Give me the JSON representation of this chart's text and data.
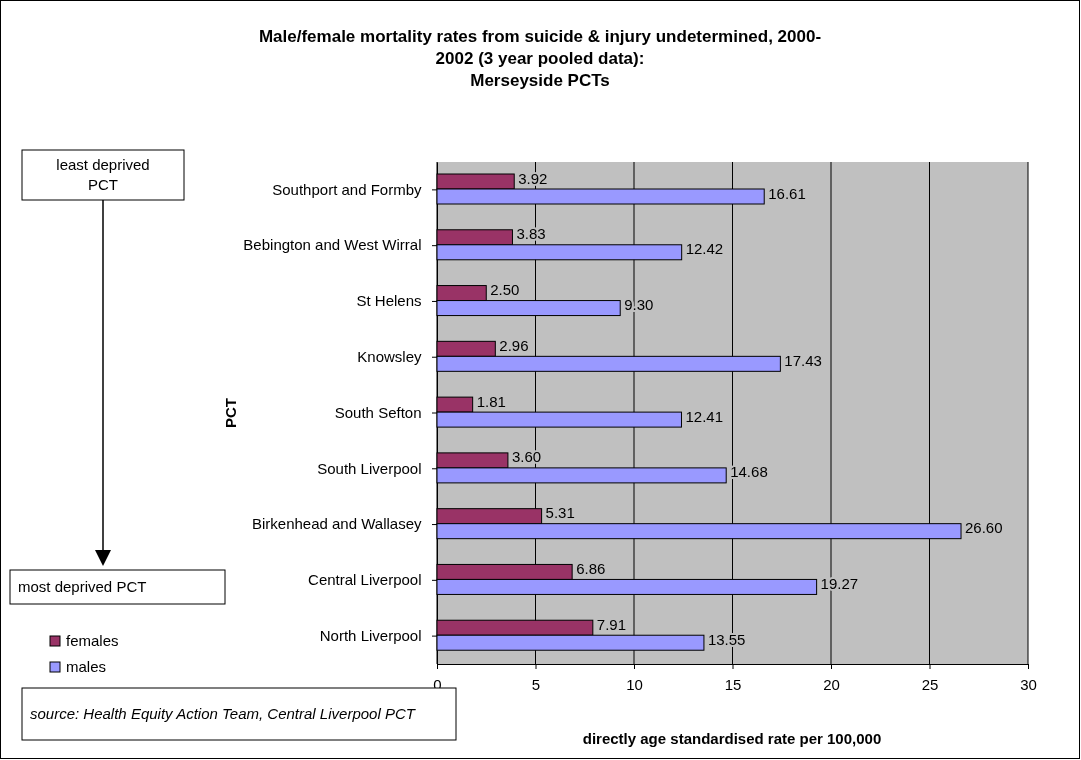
{
  "chart_data": {
    "type": "bar",
    "orientation": "horizontal",
    "title": "Male/female mortality rates from suicide & injury undetermined, 2000-\n2002 (3 year pooled data):\nMerseyside PCTs",
    "xlabel": "directly age standardised rate per 100,000",
    "ylabel": "PCT",
    "categories": [
      "Southport and Formby",
      "Bebington and West Wirral",
      "St Helens",
      "Knowsley",
      "South Sefton",
      "South Liverpool",
      "Birkenhead and Wallasey",
      "Central Liverpool",
      "North Liverpool"
    ],
    "series": [
      {
        "name": "females",
        "color": "#993366",
        "values": [
          3.92,
          3.83,
          2.5,
          2.96,
          1.81,
          3.6,
          5.31,
          6.86,
          7.91
        ],
        "value_labels": [
          "3.92",
          "3.83",
          "2.50",
          "2.96",
          "1.81",
          "3.60",
          "5.31",
          "6.86",
          "7.91"
        ]
      },
      {
        "name": "males",
        "color": "#9999ff",
        "values": [
          16.61,
          12.42,
          9.3,
          17.43,
          12.41,
          14.68,
          26.6,
          19.27,
          13.55
        ],
        "value_labels": [
          "16.61",
          "12.42",
          "9.30",
          "17.43",
          "12.41",
          "14.68",
          "26.60",
          "19.27",
          "13.55"
        ]
      }
    ],
    "xlim": [
      0,
      30
    ],
    "xticks": [
      0,
      5,
      10,
      15,
      20,
      25,
      30
    ],
    "grid": "x",
    "legend": "bottom left",
    "annotations": [
      "least deprived PCT",
      "most deprived PCT",
      "source: Health Equity Action Team, Central Liverpool PCT"
    ]
  }
}
